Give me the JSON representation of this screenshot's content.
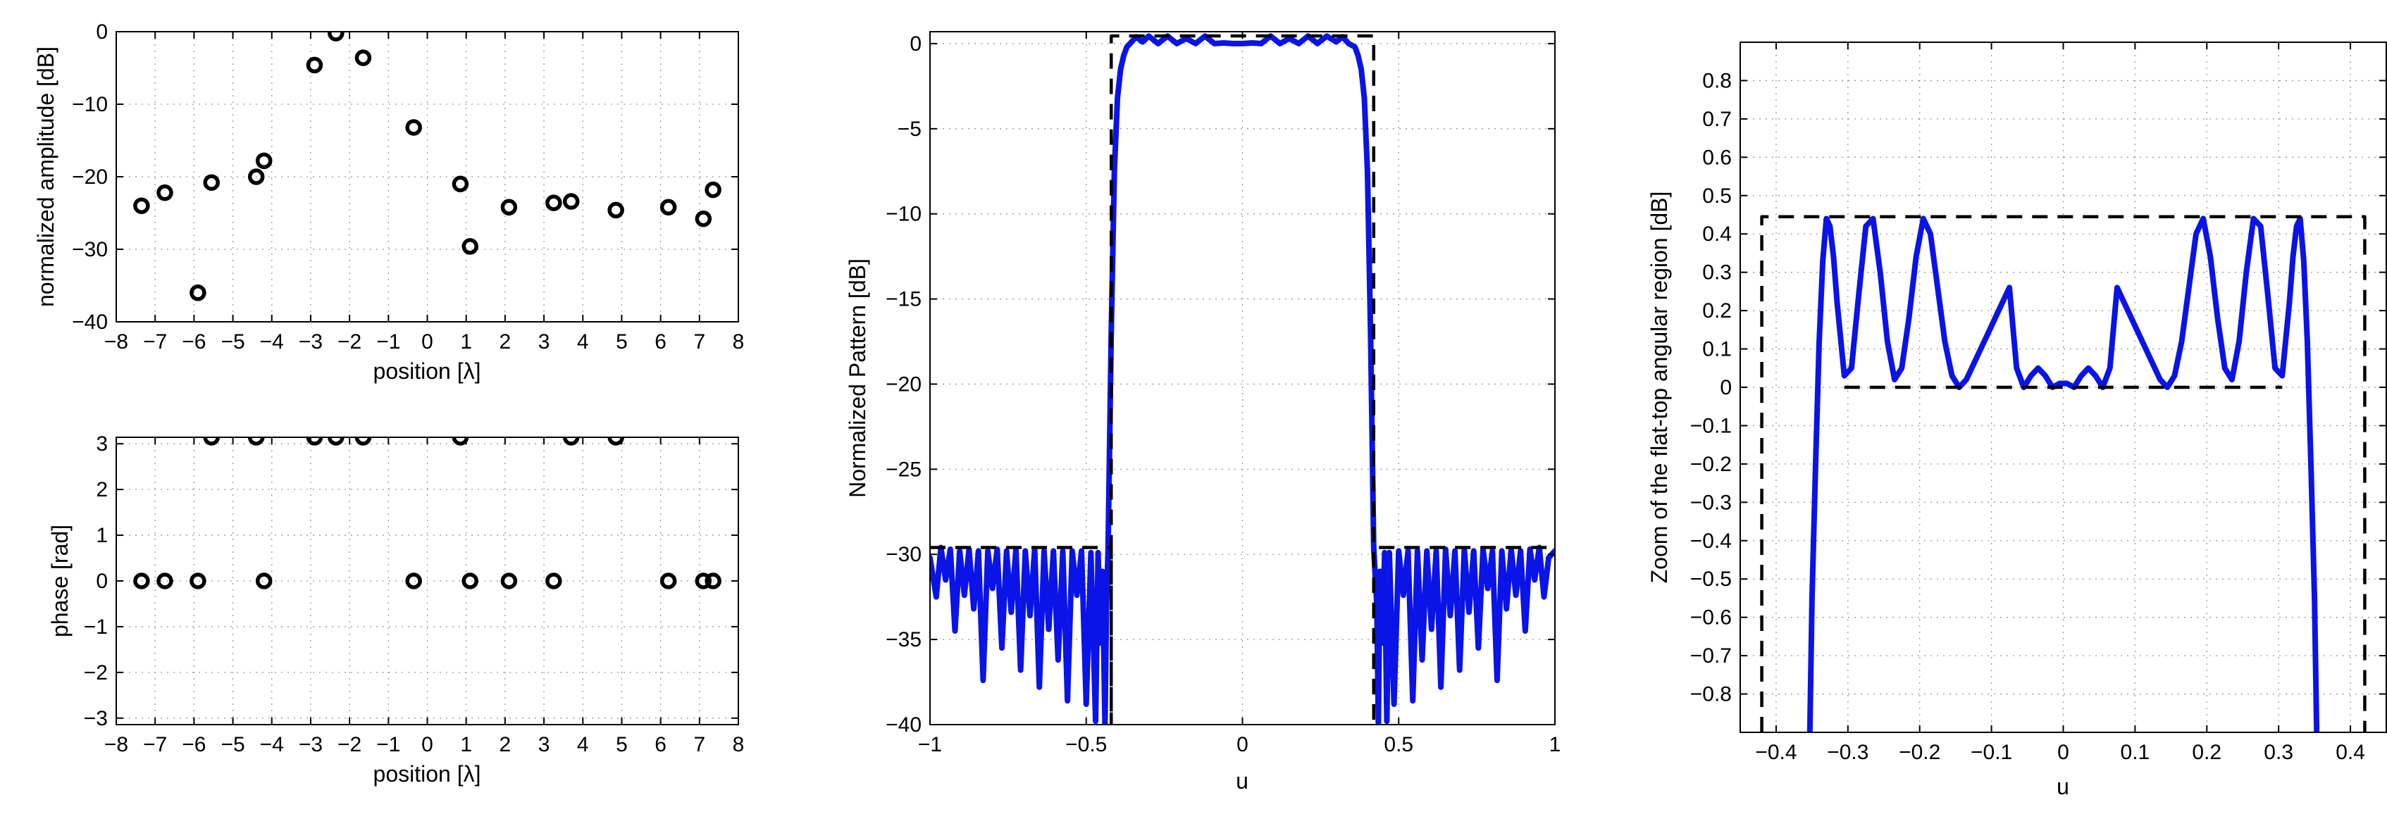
{
  "chart_data": [
    {
      "id": "amplitude",
      "type": "scatter",
      "xlabel": "position [λ]",
      "ylabel": "normalized amplitude [dB]",
      "xlim": [
        -8,
        8
      ],
      "ylim": [
        -40,
        0
      ],
      "xticks": [
        -8,
        -7,
        -6,
        -5,
        -4,
        -3,
        -2,
        -1,
        0,
        1,
        2,
        3,
        4,
        5,
        6,
        7,
        8
      ],
      "yticks": [
        -40,
        -30,
        -20,
        -10,
        0
      ],
      "grid": true,
      "series": [
        {
          "marker": "circle-open",
          "color": "#000000",
          "x": [
            -7.35,
            -6.75,
            -5.9,
            -5.55,
            -4.4,
            -4.2,
            -2.9,
            -2.35,
            -1.65,
            -0.35,
            0.85,
            1.1,
            2.1,
            3.25,
            3.7,
            4.85,
            6.2,
            7.1,
            7.35
          ],
          "y": [
            -24,
            -22.2,
            -36,
            -20.8,
            -20,
            -17.8,
            -4.6,
            -0.2,
            -3.6,
            -13.2,
            -21,
            -29.6,
            -24.2,
            -23.6,
            -23.4,
            -24.6,
            -24.2,
            -25.8,
            -21.8
          ]
        }
      ]
    },
    {
      "id": "phase",
      "type": "scatter",
      "xlabel": "position [λ]",
      "ylabel": "phase [rad]",
      "xlim": [
        -8,
        8
      ],
      "ylim": [
        -3.14159,
        3.14159
      ],
      "xticks": [
        -8,
        -7,
        -6,
        -5,
        -4,
        -3,
        -2,
        -1,
        0,
        1,
        2,
        3,
        4,
        5,
        6,
        7,
        8
      ],
      "yticks": [
        -3,
        -2,
        -1,
        0,
        1,
        2,
        3
      ],
      "grid": true,
      "series": [
        {
          "marker": "circle-open",
          "color": "#000000",
          "x": [
            -7.35,
            -6.75,
            -5.9,
            -5.55,
            -4.4,
            -4.2,
            -2.9,
            -2.35,
            -1.65,
            -0.35,
            0.85,
            1.1,
            2.1,
            3.25,
            3.7,
            4.85,
            6.2,
            7.1,
            7.35
          ],
          "y": [
            0,
            0,
            0,
            3.14159,
            3.14159,
            0,
            3.14159,
            3.14159,
            3.14159,
            0,
            3.14159,
            0,
            0,
            0,
            3.14159,
            3.14159,
            0,
            0,
            0
          ]
        }
      ]
    },
    {
      "id": "pattern",
      "type": "line",
      "xlabel": "u",
      "ylabel": "Normalized Pattern [dB]",
      "xlim": [
        -1,
        1
      ],
      "ylim": [
        -40,
        0.7
      ],
      "xticks": [
        -1,
        -0.5,
        0,
        0.5,
        1
      ],
      "yticks": [
        -40,
        -35,
        -30,
        -25,
        -20,
        -15,
        -10,
        -5,
        0
      ],
      "grid": true,
      "series": [
        {
          "style": "solid",
          "color": "#0a14e6",
          "x": [
            -1.0,
            -0.98,
            -0.965,
            -0.95,
            -0.935,
            -0.92,
            -0.905,
            -0.89,
            -0.875,
            -0.86,
            -0.845,
            -0.83,
            -0.815,
            -0.8,
            -0.785,
            -0.77,
            -0.755,
            -0.74,
            -0.725,
            -0.71,
            -0.695,
            -0.68,
            -0.665,
            -0.65,
            -0.635,
            -0.62,
            -0.605,
            -0.59,
            -0.575,
            -0.56,
            -0.545,
            -0.53,
            -0.515,
            -0.5,
            -0.485,
            -0.47,
            -0.462,
            -0.455,
            -0.448,
            -0.44,
            -0.435,
            -0.43,
            -0.42,
            -0.41,
            -0.4,
            -0.39,
            -0.38,
            -0.37,
            -0.36,
            -0.34,
            -0.32,
            -0.3,
            -0.27,
            -0.24,
            -0.21,
            -0.18,
            -0.15,
            -0.12,
            -0.09,
            -0.06,
            -0.03,
            0.0,
            0.03,
            0.06,
            0.09,
            0.12,
            0.15,
            0.18,
            0.21,
            0.24,
            0.27,
            0.3,
            0.32,
            0.34,
            0.36,
            0.37,
            0.38,
            0.39,
            0.4,
            0.41,
            0.42,
            0.43,
            0.435,
            0.44,
            0.448,
            0.455,
            0.462,
            0.47,
            0.485,
            0.5,
            0.515,
            0.53,
            0.545,
            0.56,
            0.575,
            0.59,
            0.605,
            0.62,
            0.635,
            0.65,
            0.665,
            0.68,
            0.695,
            0.71,
            0.725,
            0.74,
            0.755,
            0.77,
            0.785,
            0.8,
            0.815,
            0.83,
            0.845,
            0.86,
            0.875,
            0.89,
            0.905,
            0.92,
            0.935,
            0.95,
            0.965,
            0.98,
            1.0
          ],
          "y": [
            -30.2,
            -32.5,
            -29.6,
            -31.5,
            -29.7,
            -34.5,
            -29.8,
            -32.4,
            -29.7,
            -33.2,
            -29.8,
            -37.4,
            -29.8,
            -32.0,
            -29.7,
            -35.5,
            -29.8,
            -33.4,
            -29.7,
            -36.8,
            -29.8,
            -33.6,
            -29.7,
            -37.8,
            -29.8,
            -34.4,
            -29.8,
            -36.2,
            -29.8,
            -38.6,
            -29.8,
            -32.4,
            -29.8,
            -38.8,
            -29.9,
            -39.8,
            -29.9,
            -35.2,
            -31.0,
            -40.0,
            -33.0,
            -29.6,
            -17.0,
            -7.5,
            -3.2,
            -1.5,
            -0.7,
            -0.2,
            0.0,
            0.4,
            0.1,
            0.44,
            0.0,
            0.44,
            0.0,
            0.3,
            0.0,
            0.44,
            0.0,
            0.04,
            0.0,
            0.0,
            0.04,
            0.0,
            0.44,
            0.0,
            0.3,
            0.0,
            0.44,
            0.0,
            0.44,
            0.1,
            0.4,
            0.0,
            -0.2,
            -0.7,
            -1.5,
            -3.2,
            -7.5,
            -17.0,
            -29.6,
            -33.0,
            -40.0,
            -31.0,
            -35.2,
            -29.9,
            -39.8,
            -29.9,
            -38.8,
            -29.8,
            -32.4,
            -29.8,
            -38.6,
            -29.8,
            -36.2,
            -29.8,
            -34.4,
            -29.8,
            -37.8,
            -29.7,
            -33.6,
            -29.8,
            -36.8,
            -29.7,
            -33.4,
            -29.8,
            -35.5,
            -29.7,
            -32.0,
            -29.8,
            -37.4,
            -29.8,
            -33.2,
            -29.7,
            -32.4,
            -29.8,
            -34.5,
            -29.7,
            -31.5,
            -29.6,
            -32.5,
            -30.2,
            -29.8
          ]
        },
        {
          "style": "dashed",
          "color": "#000000",
          "x": [
            -1.0,
            -0.42,
            -0.42,
            -0.42,
            0.42,
            0.42,
            0.42,
            1.0
          ],
          "y": [
            -29.6,
            -29.6,
            -40.0,
            0.45,
            0.45,
            -40.0,
            -29.6,
            -29.6
          ]
        }
      ]
    },
    {
      "id": "zoom",
      "type": "line",
      "xlabel": "u",
      "ylabel": "Zoom of the flat-top angular region [dB]",
      "xlim": [
        -0.45,
        0.45
      ],
      "ylim": [
        -0.9,
        0.9
      ],
      "xticks": [
        -0.4,
        -0.3,
        -0.2,
        -0.1,
        0,
        0.1,
        0.2,
        0.3,
        0.4
      ],
      "yticks": [
        -0.8,
        -0.7,
        -0.6,
        -0.5,
        -0.4,
        -0.3,
        -0.2,
        -0.1,
        0,
        0.1,
        0.2,
        0.3,
        0.4,
        0.5,
        0.6,
        0.7,
        0.8
      ],
      "grid": true,
      "series": [
        {
          "style": "solid",
          "color": "#0a14e6",
          "x": [
            -0.353,
            -0.35,
            -0.345,
            -0.34,
            -0.335,
            -0.33,
            -0.325,
            -0.32,
            -0.315,
            -0.305,
            -0.295,
            -0.285,
            -0.275,
            -0.265,
            -0.255,
            -0.245,
            -0.235,
            -0.225,
            -0.215,
            -0.205,
            -0.195,
            -0.185,
            -0.175,
            -0.165,
            -0.155,
            -0.145,
            -0.135,
            -0.125,
            -0.115,
            -0.105,
            -0.095,
            -0.085,
            -0.075,
            -0.065,
            -0.055,
            -0.045,
            -0.035,
            -0.025,
            -0.015,
            -0.005,
            0.005,
            0.015,
            0.025,
            0.035,
            0.045,
            0.055,
            0.065,
            0.075,
            0.085,
            0.095,
            0.105,
            0.115,
            0.125,
            0.135,
            0.145,
            0.155,
            0.165,
            0.175,
            0.185,
            0.195,
            0.205,
            0.215,
            0.225,
            0.235,
            0.245,
            0.255,
            0.265,
            0.275,
            0.285,
            0.295,
            0.305,
            0.315,
            0.32,
            0.325,
            0.33,
            0.335,
            0.34,
            0.345,
            0.35,
            0.353
          ],
          "y": [
            -0.9,
            -0.55,
            -0.2,
            0.12,
            0.33,
            0.44,
            0.42,
            0.34,
            0.22,
            0.03,
            0.05,
            0.24,
            0.42,
            0.44,
            0.3,
            0.12,
            0.02,
            0.05,
            0.18,
            0.34,
            0.44,
            0.4,
            0.26,
            0.12,
            0.03,
            0.0,
            0.02,
            0.06,
            0.1,
            0.14,
            0.18,
            0.22,
            0.26,
            0.05,
            0.0,
            0.03,
            0.05,
            0.03,
            0.0,
            0.01,
            0.01,
            0.0,
            0.03,
            0.05,
            0.03,
            0.0,
            0.05,
            0.26,
            0.22,
            0.18,
            0.14,
            0.1,
            0.06,
            0.02,
            0.0,
            0.03,
            0.12,
            0.26,
            0.4,
            0.44,
            0.34,
            0.18,
            0.05,
            0.02,
            0.12,
            0.3,
            0.44,
            0.42,
            0.24,
            0.05,
            0.03,
            0.22,
            0.34,
            0.42,
            0.44,
            0.33,
            0.12,
            -0.2,
            -0.55,
            -0.9
          ]
        },
        {
          "style": "dashed",
          "color": "#000000",
          "x": [
            -0.42,
            -0.42,
            0.42,
            0.42
          ],
          "y": [
            -0.9,
            0.445,
            0.445,
            -0.9
          ]
        },
        {
          "style": "dashed",
          "color": "#000000",
          "x": [
            -0.305,
            0.305
          ],
          "y": [
            0.0,
            0.0
          ]
        }
      ]
    }
  ]
}
